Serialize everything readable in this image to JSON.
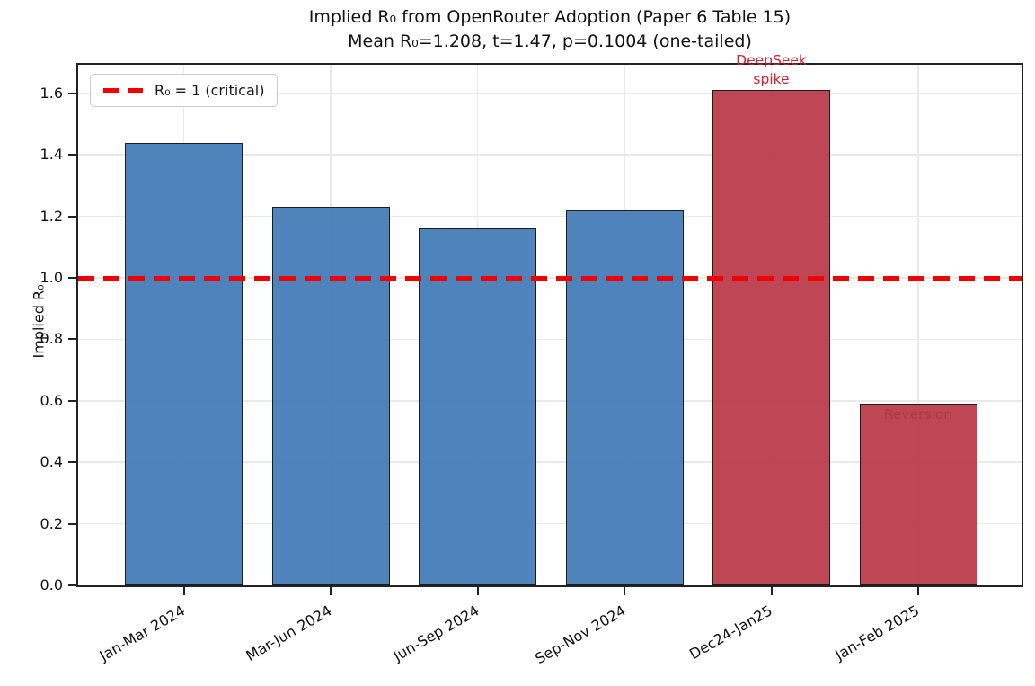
{
  "chart_data": {
    "type": "bar",
    "title": "Implied R₀ from OpenRouter Adoption (Paper 6 Table 15)",
    "subtitle": "Mean R₀=1.208, t=1.47, p=0.1004 (one-tailed)",
    "ylabel": "Implied R₀",
    "xlabel": "",
    "categories": [
      "Jan-Mar 2024",
      "Mar-Jun 2024",
      "Jun-Sep 2024",
      "Sep-Nov 2024",
      "Dec24-Jan25",
      "Jan-Feb 2025"
    ],
    "values": [
      1.44,
      1.23,
      1.16,
      1.22,
      1.61,
      0.59
    ],
    "bar_colors": [
      "#4d81b8",
      "#4d81b8",
      "#4d81b8",
      "#4d81b8",
      "#c24a57",
      "#c24a57"
    ],
    "ylim": [
      0,
      1.693
    ],
    "yticks": [
      0.0,
      0.2,
      0.4,
      0.6,
      0.8,
      1.0,
      1.2,
      1.4,
      1.6
    ],
    "grid": true,
    "legend_position": "upper-left",
    "reference_line": {
      "value": 1.0,
      "label": "R₀ = 1 (critical)",
      "color": "#f10000",
      "style": "dashed"
    },
    "annotations": [
      {
        "text_lines": [
          "DeepSeek",
          "spike"
        ],
        "bar_index": 4,
        "color": "#cf2036",
        "placement": "above-bar"
      },
      {
        "text_lines": [
          "Reversion"
        ],
        "bar_index": 5,
        "color": "#a83a46",
        "placement": "inside-top"
      }
    ]
  }
}
